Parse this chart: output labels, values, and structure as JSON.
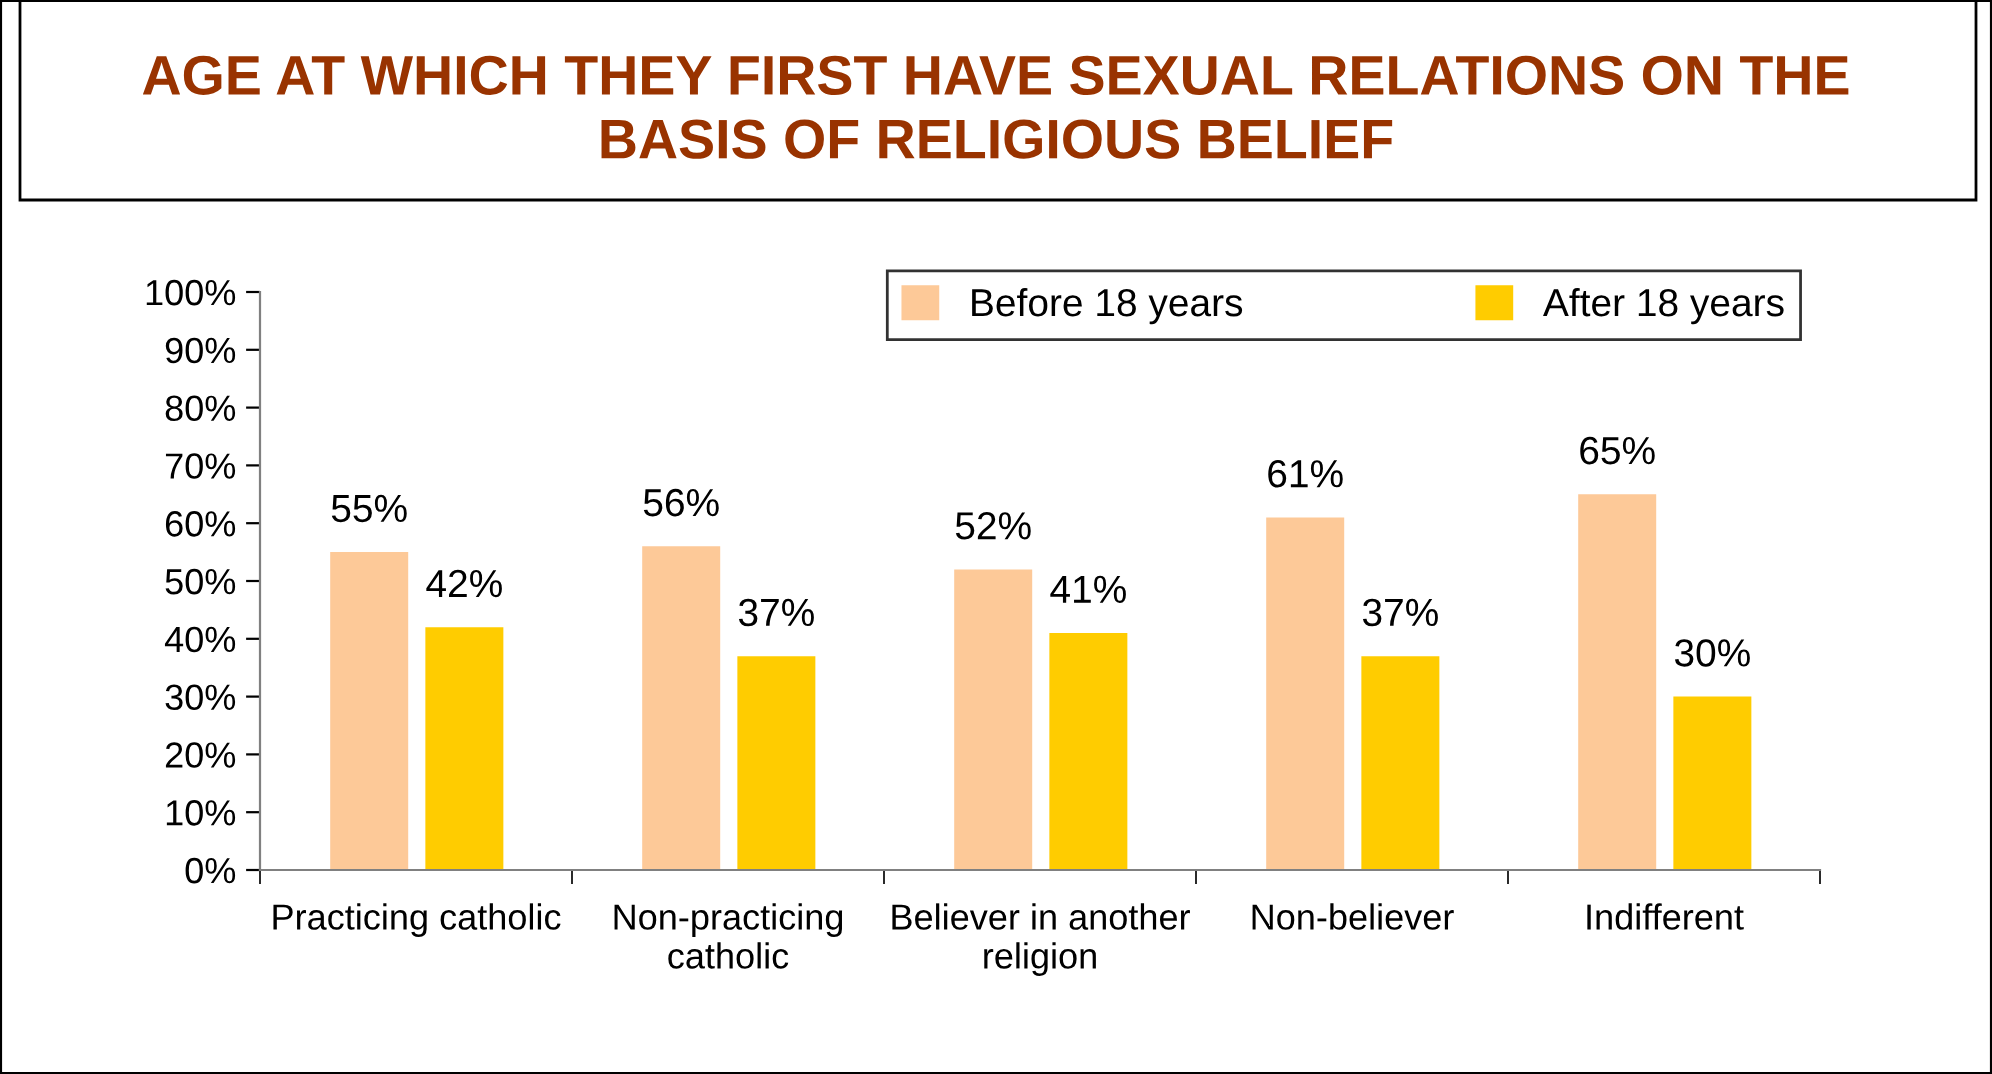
{
  "chart_data": {
    "type": "bar",
    "title": "AGE AT WHICH THEY FIRST HAVE SEXUAL RELATIONS ON THE BASIS OF RELIGIOUS BELIEF",
    "categories": [
      "Practicing catholic",
      "Non-practicing catholic",
      "Believer in another religion",
      "Non-believer",
      "Indifferent"
    ],
    "series": [
      {
        "name": "Before 18 years",
        "color": "#fdc998",
        "values": [
          55,
          56,
          52,
          61,
          65
        ],
        "value_labels": [
          "55%",
          "56%",
          "52%",
          "61%",
          "65%"
        ]
      },
      {
        "name": "After 18 years",
        "color": "#ffcc00",
        "values": [
          42,
          37,
          41,
          37,
          30
        ],
        "value_labels": [
          "42%",
          "37%",
          "41%",
          "37%",
          "30%"
        ]
      }
    ],
    "ylim": [
      0,
      100
    ],
    "yticks": [
      {
        "value": 0,
        "label": "0%"
      },
      {
        "value": 10,
        "label": "10%"
      },
      {
        "value": 20,
        "label": "20%"
      },
      {
        "value": 30,
        "label": "30%"
      },
      {
        "value": 40,
        "label": "40%"
      },
      {
        "value": 50,
        "label": "50%"
      },
      {
        "value": 60,
        "label": "60%"
      },
      {
        "value": 70,
        "label": "70%"
      },
      {
        "value": 80,
        "label": "80%"
      },
      {
        "value": 90,
        "label": "90%"
      },
      {
        "value": 100,
        "label": "100%"
      }
    ],
    "grid": false,
    "legend": "top right"
  }
}
